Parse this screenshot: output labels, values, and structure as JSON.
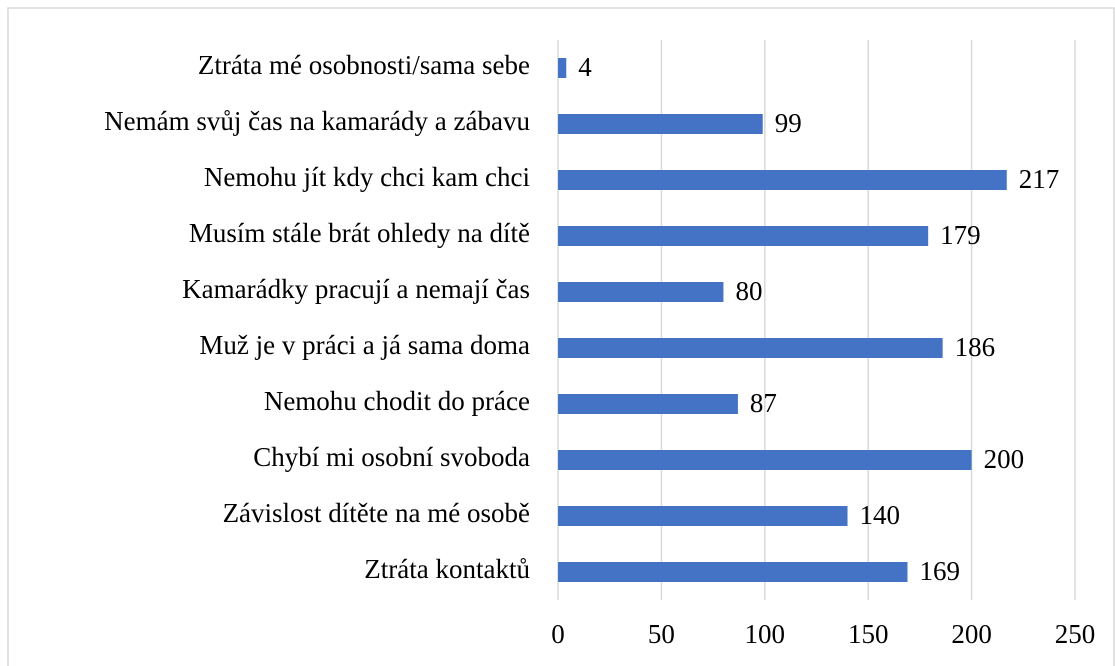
{
  "chart_data": {
    "type": "bar",
    "orientation": "horizontal",
    "categories": [
      "Ztráta mé osobnosti/sama sebe",
      "Nemám svůj čas na kamarády a zábavu",
      "Nemohu jít kdy chci kam chci",
      "Musím stále brát ohledy na dítě",
      "Kamarádky pracují a nemají čas",
      "Muž je v práci a já sama doma",
      "Nemohu chodit do práce",
      "Chybí mi osobní svoboda",
      "Závislost dítěte na mé osobě",
      "Ztráta kontaktů"
    ],
    "values": [
      4,
      99,
      217,
      179,
      80,
      186,
      87,
      200,
      140,
      169
    ],
    "color": "#4472c4",
    "xlim": [
      0,
      250
    ],
    "xticks": [
      0,
      50,
      100,
      150,
      200,
      250
    ],
    "grid": true
  }
}
